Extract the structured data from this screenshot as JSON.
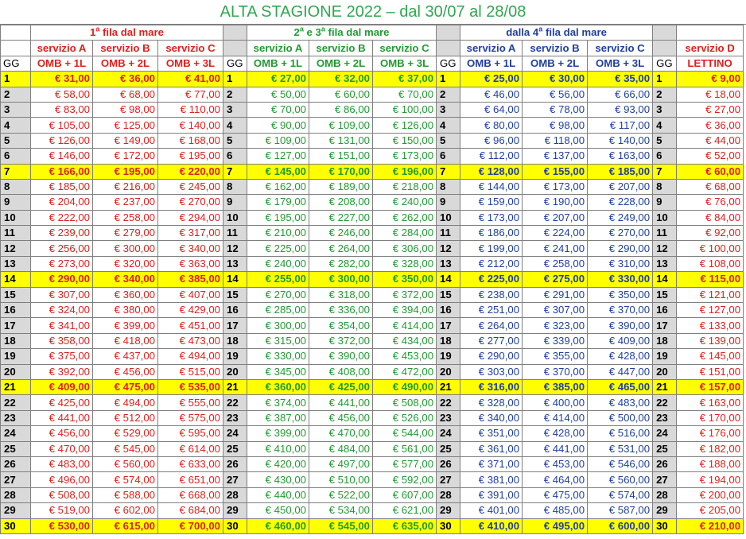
{
  "title": "ALTA STAGIONE 2022 – dal 30/07 al 28/08",
  "groups": {
    "g1": {
      "pre": "1",
      "sup": "a",
      "post": " fila dal mare"
    },
    "g2": {
      "pre": "2",
      "sup": "a",
      "mid": " e 3",
      "sup2": "a",
      "post": " fila dal mare"
    },
    "g3": {
      "pre": "dalla 4",
      "sup": "a",
      "post": " fila dal mare"
    }
  },
  "service_labels": [
    "servizio A",
    "servizio B",
    "servizio C",
    "servizio D"
  ],
  "gg_label": "GG",
  "unit_labels": [
    "OMB + 1L",
    "OMB + 2L",
    "OMB + 3L",
    "LETTINO"
  ],
  "colors": {
    "red": "#e0201b",
    "green": "#1f9c30",
    "blue": "#1f3fa3",
    "highlight": "#ffff00",
    "gray": "#d9d9d9"
  },
  "highlight_days": [
    1,
    7,
    14,
    21,
    30
  ],
  "rows": [
    {
      "gg": "1",
      "g1": [
        "€ 31,00",
        "€ 36,00",
        "€ 41,00"
      ],
      "g2": [
        "€ 27,00",
        "€ 32,00",
        "€ 37,00"
      ],
      "g3": [
        "€ 25,00",
        "€ 30,00",
        "€ 35,00"
      ],
      "d": "€ 9,00"
    },
    {
      "gg": "2",
      "g1": [
        "€ 58,00",
        "€ 68,00",
        "€ 77,00"
      ],
      "g2": [
        "€ 50,00",
        "€ 60,00",
        "€ 70,00"
      ],
      "g3": [
        "€ 46,00",
        "€ 56,00",
        "€ 66,00"
      ],
      "d": "€ 18,00"
    },
    {
      "gg": "3",
      "g1": [
        "€ 83,00",
        "€ 98,00",
        "€ 110,00"
      ],
      "g2": [
        "€ 70,00",
        "€ 86,00",
        "€ 100,00"
      ],
      "g3": [
        "€ 64,00",
        "€ 78,00",
        "€ 93,00"
      ],
      "d": "€ 27,00"
    },
    {
      "gg": "4",
      "g1": [
        "€ 105,00",
        "€ 125,00",
        "€ 140,00"
      ],
      "g2": [
        "€ 90,00",
        "€ 109,00",
        "€ 126,00"
      ],
      "g3": [
        "€ 80,00",
        "€ 98,00",
        "€ 117,00"
      ],
      "d": "€ 36,00"
    },
    {
      "gg": "5",
      "g1": [
        "€ 126,00",
        "€ 149,00",
        "€ 168,00"
      ],
      "g2": [
        "€ 109,00",
        "€ 131,00",
        "€ 150,00"
      ],
      "g3": [
        "€ 96,00",
        "€ 118,00",
        "€ 140,00"
      ],
      "d": "€ 44,00"
    },
    {
      "gg": "6",
      "g1": [
        "€ 146,00",
        "€ 172,00",
        "€ 195,00"
      ],
      "g2": [
        "€ 127,00",
        "€ 151,00",
        "€ 173,00"
      ],
      "g3": [
        "€ 112,00",
        "€ 137,00",
        "€ 163,00"
      ],
      "d": "€ 52,00"
    },
    {
      "gg": "7",
      "g1": [
        "€ 166,00",
        "€ 195,00",
        "€ 220,00"
      ],
      "g2": [
        "€ 145,00",
        "€ 170,00",
        "€ 196,00"
      ],
      "g3": [
        "€ 128,00",
        "€ 155,00",
        "€ 185,00"
      ],
      "d": "€ 60,00"
    },
    {
      "gg": "8",
      "g1": [
        "€ 185,00",
        "€ 216,00",
        "€ 245,00"
      ],
      "g2": [
        "€ 162,00",
        "€ 189,00",
        "€ 218,00"
      ],
      "g3": [
        "€ 144,00",
        "€ 173,00",
        "€ 207,00"
      ],
      "d": "€ 68,00"
    },
    {
      "gg": "9",
      "g1": [
        "€ 204,00",
        "€ 237,00",
        "€ 270,00"
      ],
      "g2": [
        "€ 179,00",
        "€ 208,00",
        "€ 240,00"
      ],
      "g3": [
        "€ 159,00",
        "€ 190,00",
        "€ 228,00"
      ],
      "d": "€ 76,00"
    },
    {
      "gg": "10",
      "g1": [
        "€ 222,00",
        "€ 258,00",
        "€ 294,00"
      ],
      "g2": [
        "€ 195,00",
        "€ 227,00",
        "€ 262,00"
      ],
      "g3": [
        "€ 173,00",
        "€ 207,00",
        "€ 249,00"
      ],
      "d": "€ 84,00"
    },
    {
      "gg": "11",
      "g1": [
        "€ 239,00",
        "€ 279,00",
        "€ 317,00"
      ],
      "g2": [
        "€ 210,00",
        "€ 246,00",
        "€ 284,00"
      ],
      "g3": [
        "€ 186,00",
        "€ 224,00",
        "€ 270,00"
      ],
      "d": "€ 92,00"
    },
    {
      "gg": "12",
      "g1": [
        "€ 256,00",
        "€ 300,00",
        "€ 340,00"
      ],
      "g2": [
        "€ 225,00",
        "€ 264,00",
        "€ 306,00"
      ],
      "g3": [
        "€ 199,00",
        "€ 241,00",
        "€ 290,00"
      ],
      "d": "€ 100,00"
    },
    {
      "gg": "13",
      "g1": [
        "€ 273,00",
        "€ 320,00",
        "€ 363,00"
      ],
      "g2": [
        "€ 240,00",
        "€ 282,00",
        "€ 328,00"
      ],
      "g3": [
        "€ 212,00",
        "€ 258,00",
        "€ 310,00"
      ],
      "d": "€ 108,00"
    },
    {
      "gg": "14",
      "g1": [
        "€ 290,00",
        "€ 340,00",
        "€ 385,00"
      ],
      "g2": [
        "€ 255,00",
        "€ 300,00",
        "€ 350,00"
      ],
      "g3": [
        "€ 225,00",
        "€ 275,00",
        "€ 330,00"
      ],
      "d": "€ 115,00"
    },
    {
      "gg": "15",
      "g1": [
        "€ 307,00",
        "€ 360,00",
        "€ 407,00"
      ],
      "g2": [
        "€ 270,00",
        "€ 318,00",
        "€ 372,00"
      ],
      "g3": [
        "€ 238,00",
        "€ 291,00",
        "€ 350,00"
      ],
      "d": "€ 121,00"
    },
    {
      "gg": "16",
      "g1": [
        "€ 324,00",
        "€ 380,00",
        "€ 429,00"
      ],
      "g2": [
        "€ 285,00",
        "€ 336,00",
        "€ 394,00"
      ],
      "g3": [
        "€ 251,00",
        "€ 307,00",
        "€ 370,00"
      ],
      "d": "€ 127,00"
    },
    {
      "gg": "17",
      "g1": [
        "€ 341,00",
        "€ 399,00",
        "€ 451,00"
      ],
      "g2": [
        "€ 300,00",
        "€ 354,00",
        "€ 414,00"
      ],
      "g3": [
        "€ 264,00",
        "€ 323,00",
        "€ 390,00"
      ],
      "d": "€ 133,00"
    },
    {
      "gg": "18",
      "g1": [
        "€ 358,00",
        "€ 418,00",
        "€ 473,00"
      ],
      "g2": [
        "€ 315,00",
        "€ 372,00",
        "€ 434,00"
      ],
      "g3": [
        "€ 277,00",
        "€ 339,00",
        "€ 409,00"
      ],
      "d": "€ 139,00"
    },
    {
      "gg": "19",
      "g1": [
        "€ 375,00",
        "€ 437,00",
        "€ 494,00"
      ],
      "g2": [
        "€ 330,00",
        "€ 390,00",
        "€ 453,00"
      ],
      "g3": [
        "€ 290,00",
        "€ 355,00",
        "€ 428,00"
      ],
      "d": "€ 145,00"
    },
    {
      "gg": "20",
      "g1": [
        "€ 392,00",
        "€ 456,00",
        "€ 515,00"
      ],
      "g2": [
        "€ 345,00",
        "€ 408,00",
        "€ 472,00"
      ],
      "g3": [
        "€ 303,00",
        "€ 370,00",
        "€ 447,00"
      ],
      "d": "€ 151,00"
    },
    {
      "gg": "21",
      "g1": [
        "€ 409,00",
        "€ 475,00",
        "€ 535,00"
      ],
      "g2": [
        "€ 360,00",
        "€ 425,00",
        "€ 490,00"
      ],
      "g3": [
        "€ 316,00",
        "€ 385,00",
        "€ 465,00"
      ],
      "d": "€ 157,00"
    },
    {
      "gg": "22",
      "g1": [
        "€ 425,00",
        "€ 494,00",
        "€ 555,00"
      ],
      "g2": [
        "€ 374,00",
        "€ 441,00",
        "€ 508,00"
      ],
      "g3": [
        "€ 328,00",
        "€ 400,00",
        "€ 483,00"
      ],
      "d": "€ 163,00"
    },
    {
      "gg": "23",
      "g1": [
        "€ 441,00",
        "€ 512,00",
        "€ 575,00"
      ],
      "g2": [
        "€ 387,00",
        "€ 456,00",
        "€ 526,00"
      ],
      "g3": [
        "€ 340,00",
        "€ 414,00",
        "€ 500,00"
      ],
      "d": "€ 170,00"
    },
    {
      "gg": "24",
      "g1": [
        "€ 456,00",
        "€ 529,00",
        "€ 595,00"
      ],
      "g2": [
        "€ 399,00",
        "€ 470,00",
        "€ 544,00"
      ],
      "g3": [
        "€ 351,00",
        "€ 428,00",
        "€ 516,00"
      ],
      "d": "€ 176,00"
    },
    {
      "gg": "25",
      "g1": [
        "€ 470,00",
        "€ 545,00",
        "€ 614,00"
      ],
      "g2": [
        "€ 410,00",
        "€ 484,00",
        "€ 561,00"
      ],
      "g3": [
        "€ 361,00",
        "€ 441,00",
        "€ 531,00"
      ],
      "d": "€ 182,00"
    },
    {
      "gg": "26",
      "g1": [
        "€ 483,00",
        "€ 560,00",
        "€ 633,00"
      ],
      "g2": [
        "€ 420,00",
        "€ 497,00",
        "€ 577,00"
      ],
      "g3": [
        "€ 371,00",
        "€ 453,00",
        "€ 546,00"
      ],
      "d": "€ 188,00"
    },
    {
      "gg": "27",
      "g1": [
        "€ 496,00",
        "€ 574,00",
        "€ 651,00"
      ],
      "g2": [
        "€ 430,00",
        "€ 510,00",
        "€ 592,00"
      ],
      "g3": [
        "€ 381,00",
        "€ 464,00",
        "€ 560,00"
      ],
      "d": "€ 194,00"
    },
    {
      "gg": "28",
      "g1": [
        "€ 508,00",
        "€ 588,00",
        "€ 668,00"
      ],
      "g2": [
        "€ 440,00",
        "€ 522,00",
        "€ 607,00"
      ],
      "g3": [
        "€ 391,00",
        "€ 475,00",
        "€ 574,00"
      ],
      "d": "€ 200,00"
    },
    {
      "gg": "29",
      "g1": [
        "€ 519,00",
        "€ 602,00",
        "€ 684,00"
      ],
      "g2": [
        "€ 450,00",
        "€ 534,00",
        "€ 621,00"
      ],
      "g3": [
        "€ 401,00",
        "€ 485,00",
        "€ 587,00"
      ],
      "d": "€ 205,00"
    },
    {
      "gg": "30",
      "g1": [
        "€ 530,00",
        "€ 615,00",
        "€ 700,00"
      ],
      "g2": [
        "€ 460,00",
        "€ 545,00",
        "€ 635,00"
      ],
      "g3": [
        "€ 410,00",
        "€ 495,00",
        "€ 600,00"
      ],
      "d": "€ 210,00"
    }
  ]
}
